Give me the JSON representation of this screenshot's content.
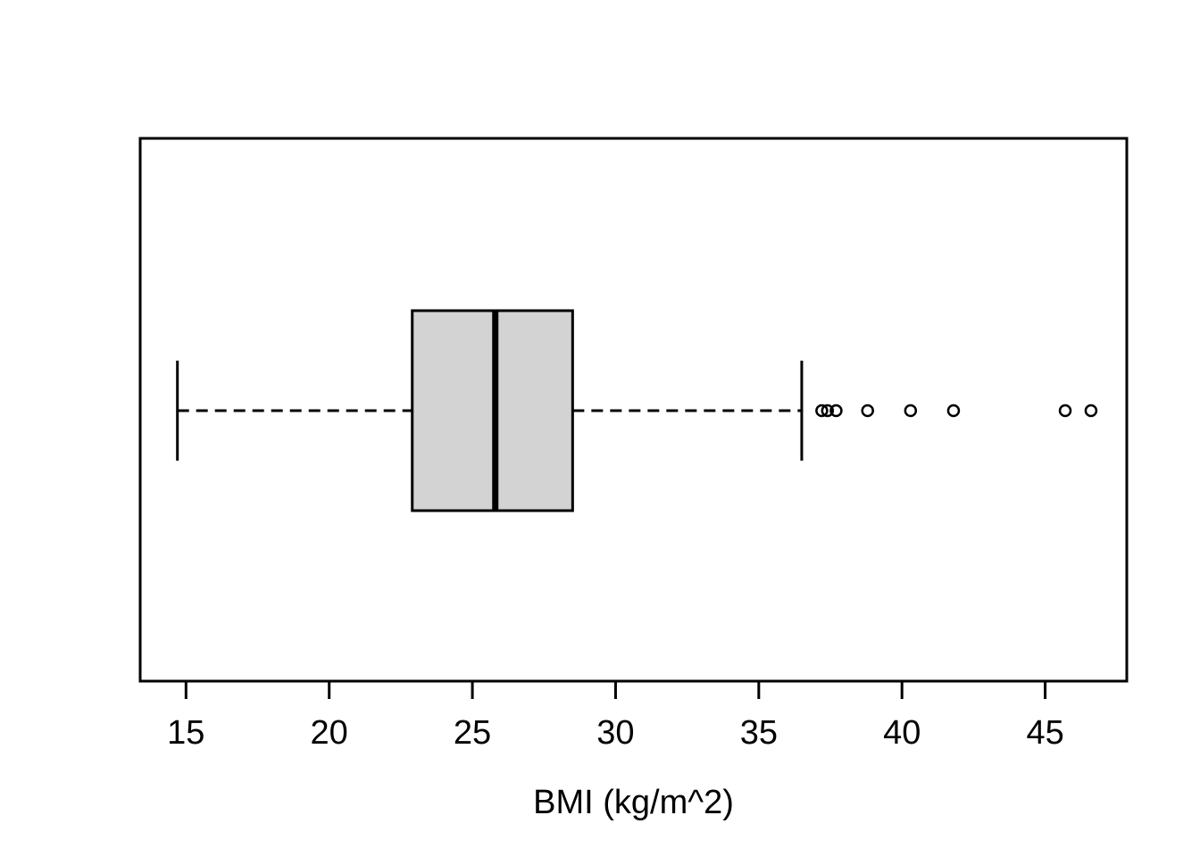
{
  "chart_data": {
    "type": "boxplot",
    "orientation": "horizontal",
    "title": "",
    "xlabel": "BMI (kg/m^2)",
    "ylabel": "",
    "xlim": [
      13.4,
      47.85
    ],
    "x_ticks": [
      15,
      20,
      25,
      30,
      35,
      40,
      45
    ],
    "grid": false,
    "legend": false,
    "series": [
      {
        "name": "BMI",
        "whisker_low": 14.7,
        "q1": 22.9,
        "median": 25.8,
        "q3": 28.5,
        "whisker_high": 36.5,
        "outliers": [
          37.2,
          37.4,
          37.7,
          38.8,
          40.3,
          41.8,
          45.7,
          46.6
        ]
      }
    ],
    "colors": {
      "box_fill": "#d3d3d3",
      "stroke": "#000000",
      "background": "#ffffff"
    }
  }
}
